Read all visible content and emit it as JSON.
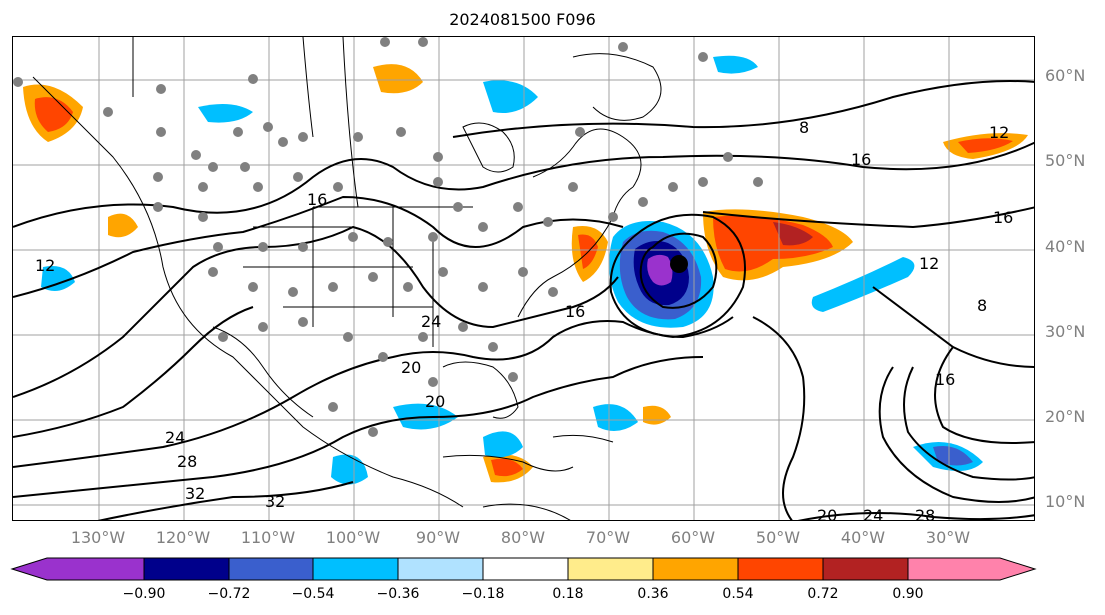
{
  "title": "2024081500 F096",
  "latitude_labels": [
    "60°N",
    "50°N",
    "40°N",
    "30°N",
    "20°N",
    "10°N"
  ],
  "longitude_labels": [
    "130°W",
    "120°W",
    "110°W",
    "100°W",
    "90°W",
    "80°W",
    "70°W",
    "60°W",
    "50°W",
    "40°W",
    "30°W"
  ],
  "colorbar": {
    "ticks": [
      "−0.90",
      "−0.72",
      "−0.54",
      "−0.36",
      "−0.18",
      "0.18",
      "0.36",
      "0.54",
      "0.72",
      "0.90"
    ],
    "colors": [
      "#9a32cd",
      "#00008b",
      "#3a5fcd",
      "#00bfff",
      "#b0e2ff",
      "#ffffff",
      "#ffec8b",
      "#ffa500",
      "#ff4500",
      "#b22222",
      "#ff82ab"
    ],
    "extend": "both"
  },
  "contour_labels": [
    "8",
    "12",
    "16",
    "20",
    "24",
    "28",
    "32"
  ],
  "colors": {
    "grid": "#a0a0a0",
    "contour": "#000000",
    "station_marker": "#808080",
    "storm_center": "#000000",
    "axis_label": "#808080"
  }
}
